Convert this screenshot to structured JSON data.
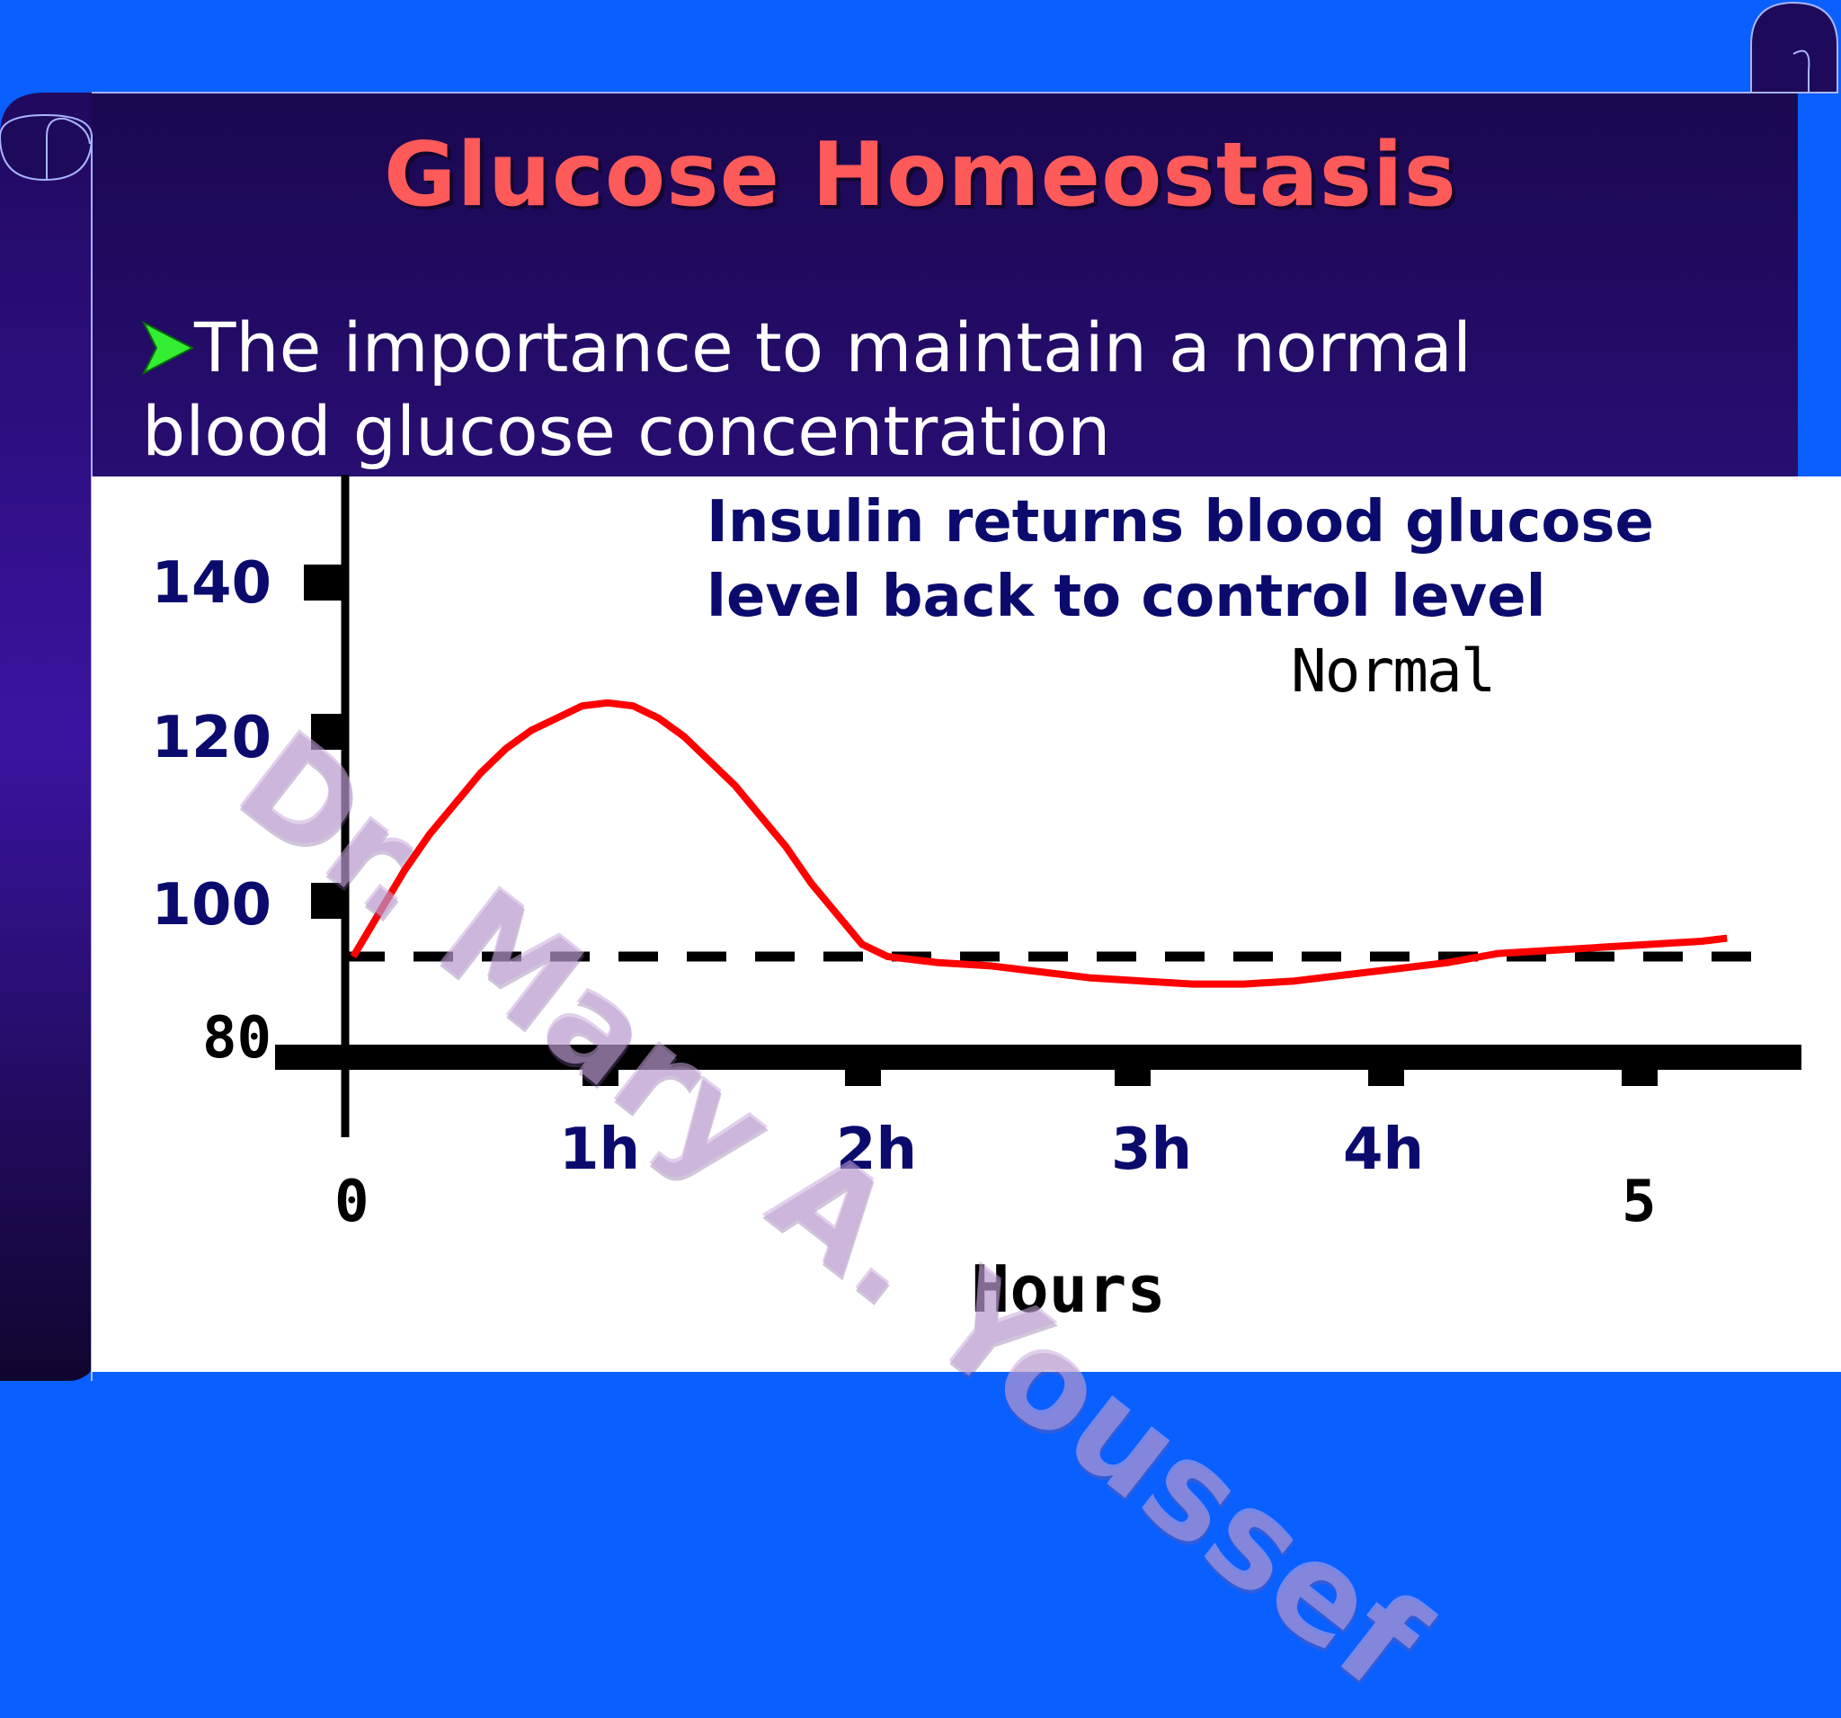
{
  "slide": {
    "title": "Glucose Homeostasis",
    "bullet": "The importance to maintain a normal blood glucose concentration",
    "watermark": "Dr. Mary A. Youssef"
  },
  "colors": {
    "frame_blue": "#0a5fff",
    "panel_top": "#1a0850",
    "panel_mid": "#34128f",
    "title": "#ff5a5a",
    "bullet_arrow": "#33ee33",
    "curve": "#ff0000",
    "navy_text": "#0b0b6e"
  },
  "chart_data": {
    "type": "line",
    "annotation": "Insulin returns blood glucose level back to control level",
    "reference_label": "Normal",
    "xlabel": "Hours",
    "ylabel": "",
    "y_ticks": [
      "140",
      "120",
      "100",
      "80"
    ],
    "y_tick_values": [
      140,
      120,
      100,
      80
    ],
    "x_ticks": [
      {
        "label": "0",
        "value": 0
      },
      {
        "label": "1h",
        "value": 1
      },
      {
        "label": "2h",
        "value": 2
      },
      {
        "label": "3h",
        "value": 3
      },
      {
        "label": "4h",
        "value": 4
      },
      {
        "label": "5",
        "value": 5
      }
    ],
    "ylim": [
      78,
      152
    ],
    "xlim": [
      -0.25,
      5.6
    ],
    "normal_level": 94,
    "grid": false,
    "series": [
      {
        "values_x": [
          0,
          0.1,
          0.2,
          0.3,
          0.4,
          0.5,
          0.6,
          0.7,
          0.8,
          0.9,
          1.0,
          1.1,
          1.2,
          1.3,
          1.4,
          1.5,
          1.6,
          1.7,
          1.8,
          1.9,
          2.0,
          2.1,
          2.2,
          2.3,
          2.5,
          2.7,
          2.9,
          3.1,
          3.3,
          3.5,
          3.7,
          3.9,
          4.1,
          4.3,
          4.5,
          4.7,
          4.9,
          5.1,
          5.3,
          5.4
        ],
        "values_y": [
          94,
          101,
          108,
          114,
          119,
          124,
          128,
          131,
          133,
          135,
          135.5,
          135,
          133,
          130,
          126,
          122,
          117,
          112,
          106,
          101,
          96,
          94,
          93.5,
          93,
          92.5,
          91.5,
          90.5,
          90,
          89.5,
          89.5,
          90,
          91,
          92,
          93,
          94.5,
          95,
          95.5,
          96,
          96.5,
          97
        ]
      }
    ]
  }
}
